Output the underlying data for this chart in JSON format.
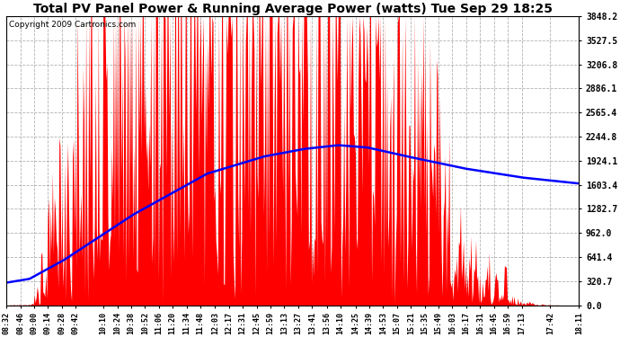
{
  "title": "Total PV Panel Power & Running Average Power (watts) Tue Sep 29 18:25",
  "copyright": "Copyright 2009 Cartronics.com",
  "background_color": "#ffffff",
  "plot_bg_color": "#ffffff",
  "grid_color": "#aaaaaa",
  "bar_color": "#ff0000",
  "line_color": "#0000ff",
  "y_ticks": [
    0.0,
    320.7,
    641.4,
    962.0,
    1282.7,
    1603.4,
    1924.1,
    2244.8,
    2565.4,
    2886.1,
    3206.8,
    3527.5,
    3848.2
  ],
  "x_labels": [
    "08:32",
    "08:46",
    "09:00",
    "09:14",
    "09:28",
    "09:42",
    "10:10",
    "10:24",
    "10:38",
    "10:52",
    "11:06",
    "11:20",
    "11:34",
    "11:48",
    "12:03",
    "12:17",
    "12:31",
    "12:45",
    "12:59",
    "13:13",
    "13:27",
    "13:41",
    "13:56",
    "14:10",
    "14:25",
    "14:39",
    "14:53",
    "15:07",
    "15:21",
    "15:35",
    "15:49",
    "16:03",
    "16:17",
    "16:31",
    "16:45",
    "16:59",
    "17:13",
    "17:42",
    "18:11"
  ],
  "y_max": 3848.2,
  "y_min": 0.0,
  "title_fontsize": 10,
  "copyright_fontsize": 6.5,
  "tick_fontsize": 7,
  "x_tick_fontsize": 6
}
